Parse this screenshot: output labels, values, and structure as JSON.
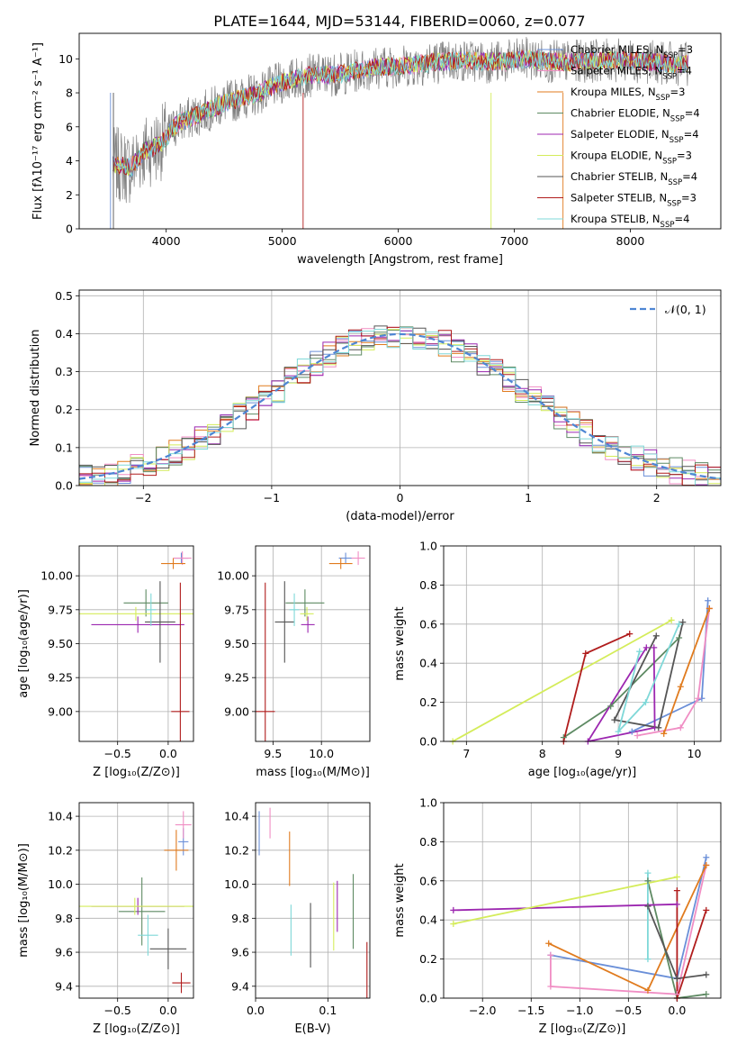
{
  "colors": [
    "#6a8fd8",
    "#f08ec4",
    "#e07b1e",
    "#5e8a63",
    "#9c27b0",
    "#d4ec5a",
    "#555555",
    "#b01c1c",
    "#7fd8d8"
  ],
  "title": "PLATE=1644, MJD=53144, FIBERID=0060, z=0.077",
  "chart_data": [
    {
      "id": "spectrum",
      "type": "line",
      "xlabel": "wavelength [Angstrom, rest frame]",
      "ylabel": "Flux [fλ10⁻¹⁷ erg cm⁻² s⁻¹ A⁻¹]",
      "xlim": [
        3250,
        8780
      ],
      "ylim": [
        0,
        11.5
      ],
      "xticks": [
        4000,
        5000,
        6000,
        7000,
        8000
      ],
      "yticks": [
        0,
        2,
        4,
        6,
        8,
        10
      ],
      "legend_position": "right",
      "continuum": [
        [
          3540,
          3.8
        ],
        [
          3700,
          3.6
        ],
        [
          3800,
          4.5
        ],
        [
          3950,
          5.0
        ],
        [
          4100,
          6.2
        ],
        [
          4300,
          6.8
        ],
        [
          4500,
          7.4
        ],
        [
          4800,
          8.0
        ],
        [
          5000,
          8.6
        ],
        [
          5200,
          9.0
        ],
        [
          5500,
          9.1
        ],
        [
          5800,
          9.5
        ],
        [
          6100,
          9.6
        ],
        [
          6300,
          9.8
        ],
        [
          6600,
          9.9
        ],
        [
          6900,
          9.8
        ],
        [
          7100,
          10.0
        ],
        [
          7400,
          9.8
        ],
        [
          7700,
          9.9
        ],
        [
          8000,
          9.9
        ],
        [
          8400,
          9.7
        ],
        [
          8500,
          9.7
        ]
      ],
      "series": [
        {
          "name": "Chabrier MILES, N",
          "sub": "SSP",
          "tail": "=3"
        },
        {
          "name": "Salpeter MILES, N",
          "sub": "SSP",
          "tail": "=4"
        },
        {
          "name": "Kroupa MILES, N",
          "sub": "SSP",
          "tail": "=3"
        },
        {
          "name": "Chabrier ELODIE, N",
          "sub": "SSP",
          "tail": "=4"
        },
        {
          "name": "Salpeter ELODIE, N",
          "sub": "SSP",
          "tail": "=4"
        },
        {
          "name": "Kroupa ELODIE, N",
          "sub": "SSP",
          "tail": "=3"
        },
        {
          "name": "Chabrier STELIB, N",
          "sub": "SSP",
          "tail": "=4"
        },
        {
          "name": "Salpeter STELIB, N",
          "sub": "SSP",
          "tail": "=3"
        },
        {
          "name": "Kroupa STELIB, N",
          "sub": "SSP",
          "tail": "=4"
        }
      ]
    },
    {
      "id": "residuals",
      "type": "line",
      "xlabel": "(data-model)/error",
      "ylabel": "Normed distribution",
      "xlim": [
        -2.5,
        2.5
      ],
      "ylim": [
        0,
        0.515
      ],
      "xticks": [
        -2,
        -1,
        0,
        1,
        2
      ],
      "yticks": [
        0.0,
        0.1,
        0.2,
        0.3,
        0.4,
        0.5
      ],
      "grid": true,
      "legend": "𝒩(0, 1)",
      "legend_position": "top-right",
      "bin_width": 0.1
    },
    {
      "id": "age-vs-Z",
      "type": "scatter",
      "xlabel": "Z [log₁₀(Z/Z⊙)]",
      "ylabel": "age  [log₁₀(age/yr)]",
      "xlim": [
        -0.88,
        0.25
      ],
      "ylim": [
        8.78,
        10.22
      ],
      "xticks": [
        -0.5,
        0.0
      ],
      "yticks": [
        9.0,
        9.25,
        9.5,
        9.75,
        10.0
      ],
      "grid": true,
      "points": [
        {
          "x": 0.13,
          "y": 10.13,
          "xerr": 0.07,
          "yerr": 0.04
        },
        {
          "x": 0.14,
          "y": 10.13,
          "xerr": 0.09,
          "yerr": 0.05
        },
        {
          "x": 0.05,
          "y": 10.09,
          "xerr": 0.12,
          "yerr": 0.04
        },
        {
          "x": -0.22,
          "y": 9.8,
          "xerr": 0.22,
          "yerr": 0.1
        },
        {
          "x": -0.3,
          "y": 9.64,
          "xerr": 0.46,
          "yerr": 0.06
        },
        {
          "x": -0.32,
          "y": 9.72,
          "xerr": 0.58,
          "yerr": 0.05
        },
        {
          "x": -0.08,
          "y": 9.66,
          "xerr": 0.15,
          "yerr": 0.3
        },
        {
          "x": 0.12,
          "y": 9.0,
          "xerr": 0.09,
          "yerr": 0.95
        },
        {
          "x": -0.17,
          "y": 9.75,
          "xerr": 0.05,
          "yerr": 0.12
        }
      ]
    },
    {
      "id": "age-vs-mass",
      "type": "scatter",
      "xlabel": "mass [log₁₀(M/M⊙)]",
      "ylabel": "",
      "xlim": [
        9.32,
        10.5
      ],
      "ylim": [
        8.78,
        10.22
      ],
      "xticks": [
        9.5,
        10.0
      ],
      "yticks": [
        9.0,
        9.25,
        9.5,
        9.75,
        10.0
      ],
      "grid": true,
      "points": [
        {
          "x": 10.25,
          "y": 10.13,
          "xerr": 0.07,
          "yerr": 0.04
        },
        {
          "x": 10.38,
          "y": 10.13,
          "xerr": 0.07,
          "yerr": 0.05
        },
        {
          "x": 10.2,
          "y": 10.09,
          "xerr": 0.12,
          "yerr": 0.04
        },
        {
          "x": 9.83,
          "y": 9.8,
          "xerr": 0.2,
          "yerr": 0.1
        },
        {
          "x": 9.86,
          "y": 9.64,
          "xerr": 0.07,
          "yerr": 0.06
        },
        {
          "x": 9.85,
          "y": 9.72,
          "xerr": 0.07,
          "yerr": 0.05
        },
        {
          "x": 9.62,
          "y": 9.66,
          "xerr": 0.1,
          "yerr": 0.3
        },
        {
          "x": 9.42,
          "y": 9.0,
          "xerr": 0.1,
          "yerr": 0.95
        },
        {
          "x": 9.72,
          "y": 9.75,
          "xerr": 0.05,
          "yerr": 0.12
        }
      ]
    },
    {
      "id": "weight-vs-age",
      "type": "line",
      "xlabel": "age  [log₁₀(age/yr)]",
      "ylabel": "mass weight",
      "xlim": [
        6.7,
        10.35
      ],
      "ylim": [
        0,
        1.0
      ],
      "xticks": [
        7,
        8,
        9,
        10
      ],
      "yticks": [
        0.0,
        0.2,
        0.4,
        0.6,
        0.8,
        1.0
      ],
      "grid": true,
      "series": [
        {
          "x": [
            10.18,
            10.1,
            9.18
          ],
          "y": [
            0.72,
            0.22,
            0.05
          ]
        },
        {
          "x": [
            10.2,
            10.05,
            9.82,
            9.25
          ],
          "y": [
            0.68,
            0.22,
            0.07,
            0.03
          ]
        },
        {
          "x": [
            10.2,
            9.82,
            9.6
          ],
          "y": [
            0.68,
            0.28,
            0.04
          ]
        },
        {
          "x": [
            9.8,
            8.9,
            8.28
          ],
          "y": [
            0.53,
            0.18,
            0.02
          ]
        },
        {
          "x": [
            9.47,
            9.48,
            8.6,
            9.37
          ],
          "y": [
            0.48,
            0.07,
            0.0,
            0.48
          ]
        },
        {
          "x": [
            9.7,
            6.82
          ],
          "y": [
            0.62,
            0.0
          ]
        },
        {
          "x": [
            9.85,
            9.53,
            8.95,
            9.5
          ],
          "y": [
            0.61,
            0.07,
            0.11,
            0.54
          ]
        },
        {
          "x": [
            9.15,
            8.57,
            8.28
          ],
          "y": [
            0.55,
            0.45,
            0.0
          ]
        },
        {
          "x": [
            9.8,
            9.36,
            9.0,
            9.28
          ],
          "y": [
            0.6,
            0.2,
            0.05,
            0.46
          ]
        }
      ]
    },
    {
      "id": "mass-vs-Z",
      "type": "scatter",
      "xlabel": "Z [log₁₀(Z/Z⊙)]",
      "ylabel": "mass [log₁₀(M/M⊙)]",
      "xlim": [
        -0.88,
        0.25
      ],
      "ylim": [
        9.33,
        10.48
      ],
      "xticks": [
        -0.5,
        0.0
      ],
      "yticks": [
        9.4,
        9.6,
        9.8,
        10.0,
        10.2,
        10.4
      ],
      "grid": true,
      "points": [
        {
          "x": 0.15,
          "y": 10.25,
          "xerr": 0.05,
          "yerr": 0.08
        },
        {
          "x": 0.15,
          "y": 10.35,
          "xerr": 0.08,
          "yerr": 0.08
        },
        {
          "x": 0.08,
          "y": 10.2,
          "xerr": 0.12,
          "yerr": 0.12
        },
        {
          "x": -0.26,
          "y": 9.84,
          "xerr": 0.23,
          "yerr": 0.2
        },
        {
          "x": -0.3,
          "y": 9.87,
          "xerr": 0.46,
          "yerr": 0.05
        },
        {
          "x": -0.33,
          "y": 9.87,
          "xerr": 0.58,
          "yerr": 0.05
        },
        {
          "x": -0.0,
          "y": 9.62,
          "xerr": 0.18,
          "yerr": 0.12
        },
        {
          "x": 0.13,
          "y": 9.42,
          "xerr": 0.09,
          "yerr": 0.06
        },
        {
          "x": -0.2,
          "y": 9.7,
          "xerr": 0.1,
          "yerr": 0.12
        }
      ]
    },
    {
      "id": "mass-vs-EBV",
      "type": "scatter",
      "xlabel": "E(B-V)",
      "ylabel": "",
      "xlim": [
        0.0,
        0.158
      ],
      "ylim": [
        9.33,
        10.48
      ],
      "xticks": [
        0.0,
        0.1
      ],
      "yticks": [
        9.4,
        9.6,
        9.8,
        10.0,
        10.2,
        10.4
      ],
      "grid": true,
      "points": [
        {
          "x": 0.005,
          "y": 10.3,
          "xerr": 0,
          "yerr": 0.13
        },
        {
          "x": 0.02,
          "y": 10.36,
          "xerr": 0,
          "yerr": 0.09
        },
        {
          "x": 0.047,
          "y": 10.15,
          "xerr": 0,
          "yerr": 0.16
        },
        {
          "x": 0.135,
          "y": 9.84,
          "xerr": 0,
          "yerr": 0.22
        },
        {
          "x": 0.113,
          "y": 9.87,
          "xerr": 0,
          "yerr": 0.15
        },
        {
          "x": 0.108,
          "y": 9.81,
          "xerr": 0,
          "yerr": 0.2
        },
        {
          "x": 0.076,
          "y": 9.7,
          "xerr": 0,
          "yerr": 0.19
        },
        {
          "x": 0.154,
          "y": 9.45,
          "xerr": 0,
          "yerr": 0.21
        },
        {
          "x": 0.049,
          "y": 9.73,
          "xerr": 0,
          "yerr": 0.15
        }
      ]
    },
    {
      "id": "weight-vs-Z",
      "type": "line",
      "xlabel": "Z [log₁₀(Z/Z⊙)]",
      "ylabel": "mass weight",
      "xlim": [
        -2.4,
        0.45
      ],
      "ylim": [
        0,
        1.0
      ],
      "xticks": [
        -2.0,
        -1.5,
        -1.0,
        -0.5,
        0.0
      ],
      "yticks": [
        0.0,
        0.2,
        0.4,
        0.6,
        0.8,
        1.0
      ],
      "grid": true,
      "series": [
        {
          "x": [
            0.3,
            0.0,
            -1.3
          ],
          "y": [
            0.72,
            0.1,
            0.22
          ]
        },
        {
          "x": [
            0.3,
            0.0,
            -1.3,
            -1.3
          ],
          "y": [
            0.68,
            0.02,
            0.06,
            0.22
          ]
        },
        {
          "x": [
            0.3,
            -0.3,
            -1.32
          ],
          "y": [
            0.68,
            0.04,
            0.28
          ]
        },
        {
          "x": [
            0.3,
            0.0,
            -0.3
          ],
          "y": [
            0.02,
            0.0,
            0.6
          ]
        },
        {
          "x": [
            0.0,
            -2.3
          ],
          "y": [
            0.48,
            0.45
          ]
        },
        {
          "x": [
            0.0,
            -2.3
          ],
          "y": [
            0.62,
            0.38
          ]
        },
        {
          "x": [
            0.3,
            0.0,
            -0.3
          ],
          "y": [
            0.12,
            0.1,
            0.47
          ]
        },
        {
          "x": [
            0.3,
            0.0,
            0.0
          ],
          "y": [
            0.45,
            0.0,
            0.55
          ]
        },
        {
          "x": [
            -0.3,
            -0.3
          ],
          "y": [
            0.2,
            0.64
          ]
        }
      ]
    }
  ]
}
